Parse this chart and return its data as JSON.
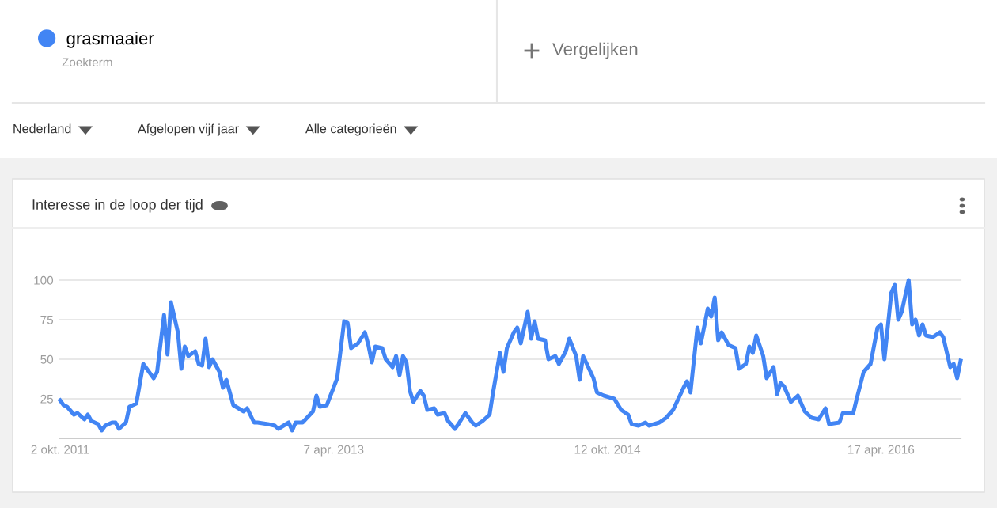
{
  "chart_data": {
    "type": "line",
    "title": "Interesse in de loop der tijd",
    "annotations": [
      "Zoekterm",
      "Vergelijken",
      "Nederland",
      "Afgelopen vijf jaar",
      "Alle categorieën"
    ],
    "x": [
      "2011-10-02",
      "2011-10-09",
      "2011-10-16",
      "2011-10-30",
      "2011-11-06",
      "2011-11-20",
      "2011-11-27",
      "2011-12-04",
      "2011-12-18",
      "2011-12-25",
      "2012-01-01",
      "2012-01-15",
      "2012-01-22",
      "2012-01-29",
      "2012-02-12",
      "2012-02-19",
      "2012-03-04",
      "2012-03-18",
      "2012-04-08",
      "2012-04-15",
      "2012-04-29",
      "2012-05-06",
      "2012-05-13",
      "2012-05-27",
      "2012-06-03",
      "2012-06-10",
      "2012-06-17",
      "2012-07-01",
      "2012-07-08",
      "2012-07-15",
      "2012-07-22",
      "2012-07-29",
      "2012-08-05",
      "2012-08-19",
      "2012-08-26",
      "2012-09-02",
      "2012-09-16",
      "2012-10-07",
      "2012-10-14",
      "2012-10-28",
      "2012-11-04",
      "2012-11-25",
      "2012-12-09",
      "2012-12-16",
      "2013-01-06",
      "2013-01-13",
      "2013-01-20",
      "2013-02-03",
      "2013-02-24",
      "2013-03-03",
      "2013-03-10",
      "2013-03-24",
      "2013-04-14",
      "2013-04-28",
      "2013-05-05",
      "2013-05-12",
      "2013-05-26",
      "2013-06-09",
      "2013-06-16",
      "2013-06-23",
      "2013-06-30",
      "2013-07-14",
      "2013-07-21",
      "2013-08-04",
      "2013-08-11",
      "2013-08-18",
      "2013-08-25",
      "2013-09-01",
      "2013-09-08",
      "2013-09-15",
      "2013-09-29",
      "2013-10-06",
      "2013-10-13",
      "2013-10-27",
      "2013-11-03",
      "2013-11-17",
      "2013-11-24",
      "2013-12-08",
      "2013-12-15",
      "2013-12-29",
      "2014-01-12",
      "2014-01-19",
      "2014-02-02",
      "2014-02-16",
      "2014-02-23",
      "2014-03-09",
      "2014-03-16",
      "2014-03-23",
      "2014-04-06",
      "2014-04-13",
      "2014-04-20",
      "2014-05-04",
      "2014-05-11",
      "2014-05-18",
      "2014-05-25",
      "2014-06-08",
      "2014-06-15",
      "2014-06-29",
      "2014-07-06",
      "2014-07-20",
      "2014-07-27",
      "2014-08-10",
      "2014-08-17",
      "2014-08-24",
      "2014-09-14",
      "2014-09-21",
      "2014-10-05",
      "2014-10-26",
      "2014-11-09",
      "2014-11-23",
      "2014-11-30",
      "2014-12-14",
      "2014-12-28",
      "2015-01-04",
      "2015-01-25",
      "2015-02-08",
      "2015-02-22",
      "2015-03-15",
      "2015-03-22",
      "2015-03-29",
      "2015-04-12",
      "2015-04-19",
      "2015-05-03",
      "2015-05-10",
      "2015-05-17",
      "2015-05-24",
      "2015-05-31",
      "2015-06-14",
      "2015-06-28",
      "2015-07-05",
      "2015-07-19",
      "2015-07-26",
      "2015-08-02",
      "2015-08-09",
      "2015-08-23",
      "2015-08-30",
      "2015-09-13",
      "2015-09-20",
      "2015-09-27",
      "2015-10-04",
      "2015-10-18",
      "2015-11-01",
      "2015-11-15",
      "2015-11-29",
      "2015-12-13",
      "2015-12-27",
      "2016-01-03",
      "2016-01-24",
      "2016-01-31",
      "2016-02-21",
      "2016-02-28",
      "2016-03-13",
      "2016-03-27",
      "2016-04-10",
      "2016-04-17",
      "2016-04-24",
      "2016-05-08",
      "2016-05-15",
      "2016-05-22",
      "2016-05-29",
      "2016-06-12",
      "2016-06-19",
      "2016-06-26",
      "2016-07-03",
      "2016-07-10",
      "2016-07-17",
      "2016-07-31",
      "2016-08-14",
      "2016-08-21",
      "2016-09-04",
      "2016-09-11",
      "2016-09-18",
      "2016-09-25"
    ],
    "series": [
      {
        "name": "grasmaaier",
        "color": "#4285f4",
        "values": [
          24,
          21,
          20,
          15,
          16,
          12,
          15,
          11,
          9,
          5,
          8,
          10,
          10,
          6,
          10,
          20,
          22,
          47,
          38,
          42,
          78,
          53,
          86,
          67,
          44,
          58,
          52,
          55,
          47,
          46,
          63,
          45,
          50,
          42,
          32,
          37,
          21,
          17,
          19,
          10,
          10,
          9,
          8,
          6,
          10,
          5,
          10,
          10,
          17,
          27,
          20,
          21,
          38,
          74,
          73,
          57,
          60,
          67,
          59,
          48,
          58,
          57,
          50,
          45,
          52,
          40,
          52,
          48,
          30,
          23,
          30,
          27,
          18,
          19,
          15,
          16,
          11,
          6,
          9,
          16,
          10,
          8,
          11,
          15,
          29,
          54,
          42,
          57,
          67,
          70,
          60,
          80,
          63,
          74,
          63,
          62,
          50,
          52,
          47,
          55,
          63,
          52,
          37,
          52,
          38,
          29,
          27,
          25,
          18,
          15,
          9,
          8,
          10,
          8,
          10,
          13,
          18,
          32,
          36,
          29,
          70,
          60,
          82,
          77,
          89,
          62,
          67,
          59,
          57,
          44,
          47,
          58,
          54,
          65,
          52,
          38,
          45,
          28,
          35,
          33,
          23,
          27,
          17,
          13,
          12,
          19,
          9,
          10,
          16,
          16,
          25,
          42,
          47,
          70,
          72,
          50,
          92,
          97,
          75,
          80,
          100,
          72,
          75,
          65,
          72,
          65,
          64,
          67,
          64,
          45,
          47,
          38,
          49
        ]
      }
    ],
    "xlim": [
      "2011-10-02",
      "2016-09-25"
    ],
    "xticks": [
      {
        "value": "2011-10-02",
        "label": "2 okt. 2011"
      },
      {
        "value": "2013-04-07",
        "label": "7 apr. 2013"
      },
      {
        "value": "2014-10-12",
        "label": "12 okt. 2014"
      },
      {
        "value": "2016-04-17",
        "label": "17 apr. 2016"
      }
    ],
    "ylim": [
      0,
      100
    ],
    "yticks": [
      25,
      50,
      75,
      100
    ],
    "grid": "y",
    "legend": "top left",
    "marker": "none",
    "line_style": "solid"
  }
}
